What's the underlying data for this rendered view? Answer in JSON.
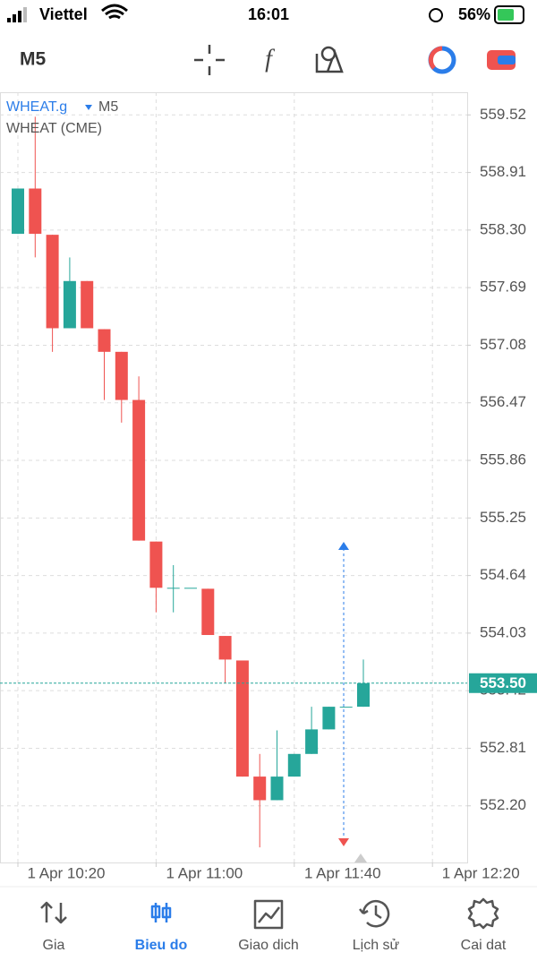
{
  "status_bar": {
    "carrier": "Viettel",
    "time": "16:01",
    "battery": "56%"
  },
  "toolbar": {
    "timeframe": "M5"
  },
  "chart_data": {
    "type": "candlestick",
    "symbol": "WHEAT.g",
    "timeframe": "M5",
    "description": "WHEAT (CME)",
    "open": [
      558.26,
      558.74,
      558.25,
      557.26,
      557.76,
      557.25,
      557.01,
      556.5,
      555.0,
      554.51,
      554.51,
      554.5,
      554.0,
      553.74,
      552.51,
      552.26,
      552.51,
      552.75,
      553.01,
      553.25,
      553.25
    ],
    "high": [
      558.74,
      559.5,
      558.25,
      558.01,
      557.76,
      557.25,
      557.01,
      556.75,
      555.0,
      554.75,
      554.51,
      554.5,
      554.0,
      553.74,
      552.75,
      553.0,
      552.75,
      553.25,
      553.25,
      553.25,
      553.75
    ],
    "low": [
      558.26,
      558.01,
      557.01,
      557.26,
      557.26,
      556.5,
      556.26,
      555.01,
      554.25,
      554.25,
      554.51,
      554.01,
      553.5,
      552.51,
      551.76,
      552.26,
      552.51,
      552.75,
      553.01,
      553.25,
      553.25
    ],
    "close": [
      558.74,
      558.26,
      557.26,
      557.76,
      557.26,
      557.01,
      556.5,
      555.01,
      554.51,
      554.51,
      554.51,
      554.01,
      553.75,
      552.51,
      552.26,
      552.51,
      552.75,
      553.01,
      553.25,
      553.25,
      553.5
    ],
    "up_color": "#26a69a",
    "down_color": "#ef5350",
    "last_price": 553.5,
    "last_price_label": "553.50",
    "ylim": [
      551.6,
      559.76
    ],
    "yticks": [
      559.52,
      558.91,
      558.3,
      557.69,
      557.08,
      556.47,
      555.86,
      555.25,
      554.64,
      554.03,
      553.42,
      552.81,
      552.2
    ],
    "ytick_labels": [
      "559.52",
      "558.91",
      "558.30",
      "557.69",
      "557.08",
      "556.47",
      "555.86",
      "555.25",
      "554.64",
      "554.03",
      "553.42",
      "552.81",
      "552.20"
    ],
    "xticks": [
      {
        "value": 0,
        "label": "1 Apr 10:20"
      },
      {
        "value": 8,
        "label": "1 Apr 11:00"
      },
      {
        "value": 16,
        "label": "1 Apr 11:40"
      },
      {
        "value": 24,
        "label": "1 Apr 12:20"
      }
    ],
    "grid": true
  },
  "tab_bar": {
    "tabs": [
      "Gia",
      "Bieu do",
      "Giao dich",
      "Lịch sử",
      "Cai dat"
    ],
    "active": 1
  }
}
